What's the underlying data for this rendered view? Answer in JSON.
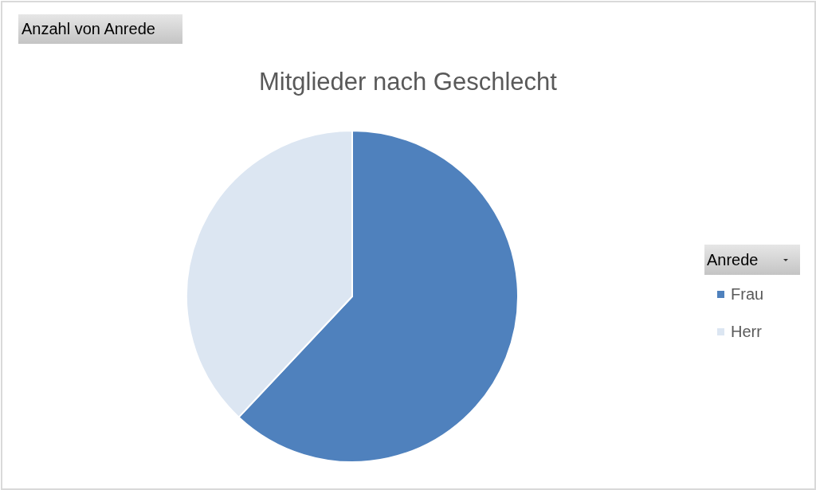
{
  "chart_data": {
    "type": "pie",
    "title": "Mitglieder nach Geschlecht",
    "categories": [
      "Frau",
      "Herr"
    ],
    "values": [
      62,
      38
    ],
    "colors": [
      "#4f81bd",
      "#dce6f2"
    ],
    "legend": "right",
    "legend_title": "Anrede",
    "annotations": [
      "Anzahl von Anrede"
    ]
  }
}
